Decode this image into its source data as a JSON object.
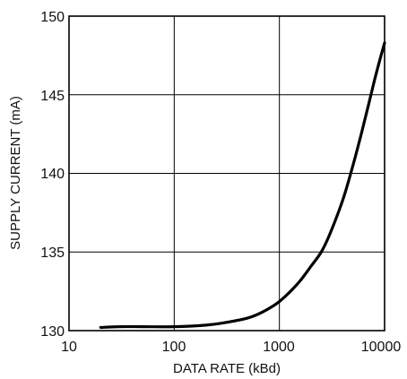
{
  "chart_data": {
    "type": "line",
    "xlabel": "DATA RATE (kBd)",
    "ylabel": "SUPPLY CURRENT (mA)",
    "x_scale": "log",
    "xlim": [
      10,
      10000
    ],
    "ylim": [
      130,
      150
    ],
    "x_ticks": [
      "10",
      "100",
      "1000",
      "10000"
    ],
    "y_ticks": [
      "130",
      "135",
      "140",
      "145",
      "150"
    ],
    "grid": true,
    "series": [
      {
        "x": [
          20,
          30,
          50,
          100,
          200,
          300,
          500,
          700,
          1000,
          1500,
          2000,
          2500,
          3000,
          4000,
          5000,
          6000,
          7000,
          8000,
          9000,
          10000
        ],
        "y": [
          130.2,
          130.25,
          130.25,
          130.25,
          130.35,
          130.5,
          130.8,
          131.2,
          131.85,
          133.0,
          134.1,
          135.0,
          136.1,
          138.3,
          140.5,
          142.5,
          144.3,
          145.9,
          147.2,
          148.3
        ]
      }
    ]
  }
}
